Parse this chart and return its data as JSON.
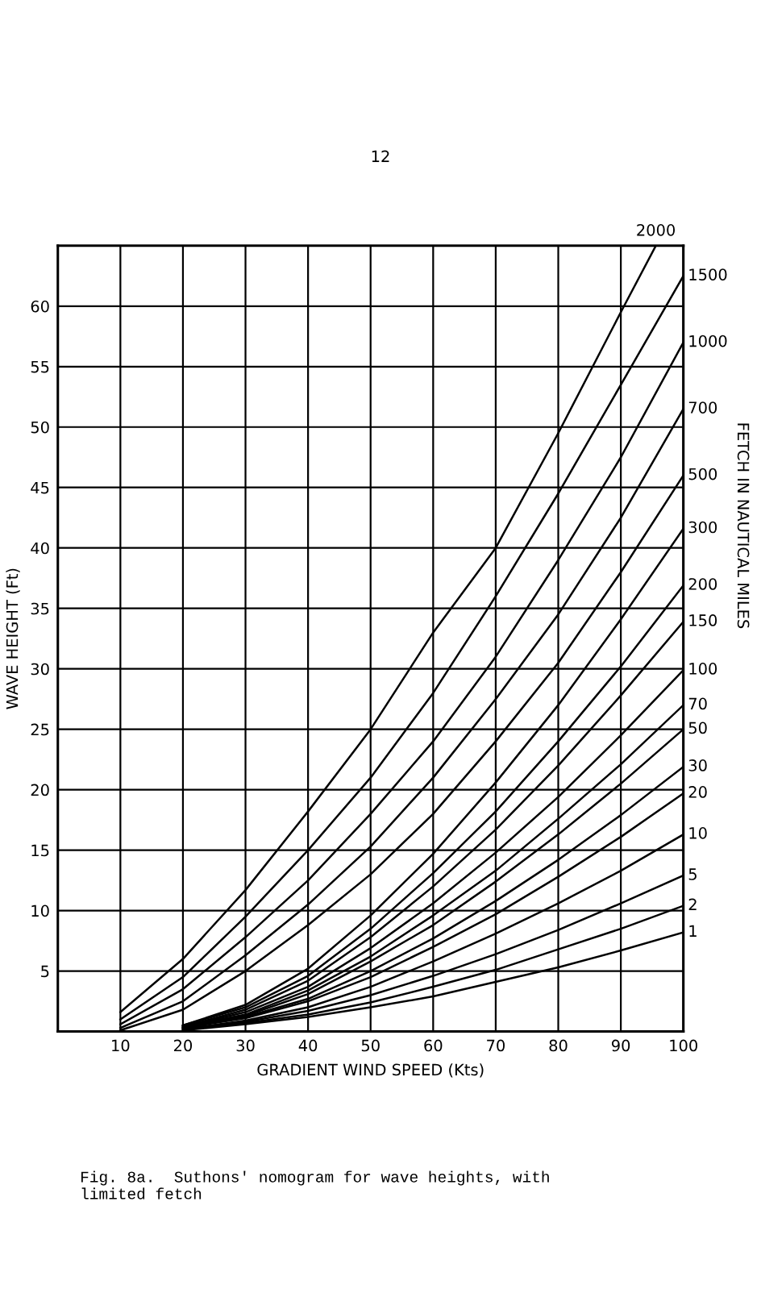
{
  "chart_data": {
    "type": "line",
    "xlabel": "GRADIENT WIND SPEED (Kts)",
    "ylabel": "WAVE HEIGHT (Ft)",
    "y2label": "FETCH IN NAUTICAL MILES",
    "annotations": [
      "12",
      "Fig. 8a.  Suthons' nomogram for wave heights, with\nlimited fetch"
    ],
    "xlim": [
      0,
      100
    ],
    "ylim": [
      0,
      65
    ],
    "xticks": [
      10,
      20,
      30,
      40,
      50,
      60,
      70,
      80,
      90,
      100
    ],
    "yticks": [
      5,
      10,
      15,
      20,
      25,
      30,
      35,
      40,
      45,
      50,
      55,
      60
    ],
    "grid": true,
    "marker": "none",
    "line_style": "solid",
    "series": [
      {
        "name": "2000",
        "color": "#000000",
        "x": [
          10,
          20,
          30,
          40,
          50,
          60,
          70,
          80,
          90,
          95.6
        ],
        "values": [
          1.6,
          6,
          11.7,
          18.2,
          25,
          33,
          40,
          49.5,
          59.5,
          65
        ]
      },
      {
        "name": "1500",
        "color": "#000000",
        "x": [
          10,
          20,
          30,
          40,
          50,
          60,
          70,
          80,
          90,
          100
        ],
        "values": [
          1.0,
          4.5,
          9.5,
          15,
          21,
          28,
          36,
          44.5,
          53.5,
          62.5
        ]
      },
      {
        "name": "1000",
        "color": "#000000",
        "x": [
          10,
          20,
          30,
          40,
          50,
          60,
          70,
          80,
          90,
          100
        ],
        "values": [
          0.6,
          3.5,
          7.8,
          12.5,
          18,
          24,
          31,
          39,
          47.5,
          57
        ]
      },
      {
        "name": "700",
        "color": "#000000",
        "x": [
          10,
          20,
          30,
          40,
          50,
          60,
          70,
          80,
          90,
          100
        ],
        "values": [
          0.3,
          2.5,
          6.3,
          10.5,
          15.3,
          21,
          27.5,
          34.5,
          42.5,
          51.5
        ]
      },
      {
        "name": "500",
        "color": "#000000",
        "x": [
          10,
          20,
          30,
          40,
          50,
          60,
          70,
          80,
          90,
          100
        ],
        "values": [
          0.1,
          1.8,
          5,
          8.8,
          13,
          18,
          24,
          30.5,
          38,
          46
        ]
      },
      {
        "name": "300",
        "color": "#000000",
        "x": [
          20,
          30,
          40,
          50,
          60,
          70,
          80,
          90,
          100
        ],
        "values": [
          0.5,
          2.2,
          5.2,
          9.6,
          14.7,
          20.6,
          27.0,
          34.1,
          41.6
        ]
      },
      {
        "name": "200",
        "color": "#000000",
        "x": [
          20,
          30,
          40,
          50,
          60,
          70,
          80,
          90,
          100
        ],
        "values": [
          0.5,
          2.0,
          4.6,
          8.5,
          13.1,
          18.2,
          24.0,
          30.2,
          36.9
        ]
      },
      {
        "name": "150",
        "color": "#000000",
        "x": [
          20,
          30,
          40,
          50,
          60,
          70,
          80,
          90,
          100
        ],
        "values": [
          0.4,
          1.8,
          4.2,
          7.8,
          12.0,
          16.7,
          22.0,
          27.8,
          33.9
        ]
      },
      {
        "name": "100",
        "color": "#000000",
        "x": [
          20,
          30,
          40,
          50,
          60,
          70,
          80,
          90,
          100
        ],
        "values": [
          0.4,
          1.6,
          3.7,
          6.9,
          10.6,
          14.8,
          19.4,
          24.5,
          29.9
        ]
      },
      {
        "name": "70",
        "color": "#000000",
        "x": [
          20,
          30,
          40,
          50,
          60,
          70,
          80,
          90,
          100
        ],
        "values": [
          0.4,
          1.4,
          3.4,
          6.2,
          9.6,
          13.3,
          17.6,
          22.1,
          27.0
        ]
      },
      {
        "name": "50",
        "color": "#000000",
        "x": [
          20,
          30,
          40,
          50,
          60,
          70,
          80,
          90,
          100
        ],
        "values": [
          0.3,
          1.3,
          3.1,
          5.8,
          8.8,
          12.4,
          16.3,
          20.5,
          25.0
        ]
      },
      {
        "name": "30",
        "color": "#000000",
        "x": [
          20,
          30,
          40,
          50,
          60,
          70,
          80,
          90,
          100
        ],
        "values": [
          0.3,
          1.2,
          2.7,
          5.0,
          7.7,
          10.8,
          14.2,
          17.9,
          21.9
        ]
      },
      {
        "name": "20",
        "color": "#000000",
        "x": [
          20,
          30,
          40,
          50,
          60,
          70,
          80,
          90,
          100
        ],
        "values": [
          0.3,
          1.1,
          2.5,
          4.5,
          7.0,
          9.7,
          12.8,
          16.1,
          19.7
        ]
      },
      {
        "name": "10",
        "color": "#000000",
        "x": [
          20,
          30,
          40,
          50,
          60,
          70,
          80,
          90,
          100
        ],
        "values": [
          0.2,
          0.9,
          2.0,
          3.7,
          5.8,
          8.1,
          10.6,
          13.3,
          16.3
        ]
      },
      {
        "name": "5",
        "color": "#000000",
        "x": [
          20,
          30,
          40,
          50,
          60,
          70,
          80,
          90,
          100
        ],
        "values": [
          0.2,
          0.8,
          1.7,
          3.0,
          4.6,
          6.4,
          8.4,
          10.6,
          12.9
        ]
      },
      {
        "name": "2",
        "color": "#000000",
        "x": [
          20,
          30,
          40,
          50,
          60,
          70,
          80,
          90,
          100
        ],
        "values": [
          0.2,
          0.7,
          1.4,
          2.4,
          3.7,
          5.1,
          6.8,
          8.5,
          10.4
        ]
      },
      {
        "name": "1",
        "color": "#000000",
        "x": [
          20,
          30,
          40,
          50,
          60,
          70,
          80,
          90,
          100
        ],
        "values": [
          0.1,
          0.6,
          1.2,
          2.0,
          2.9,
          4.1,
          5.3,
          6.7,
          8.2
        ]
      }
    ]
  }
}
